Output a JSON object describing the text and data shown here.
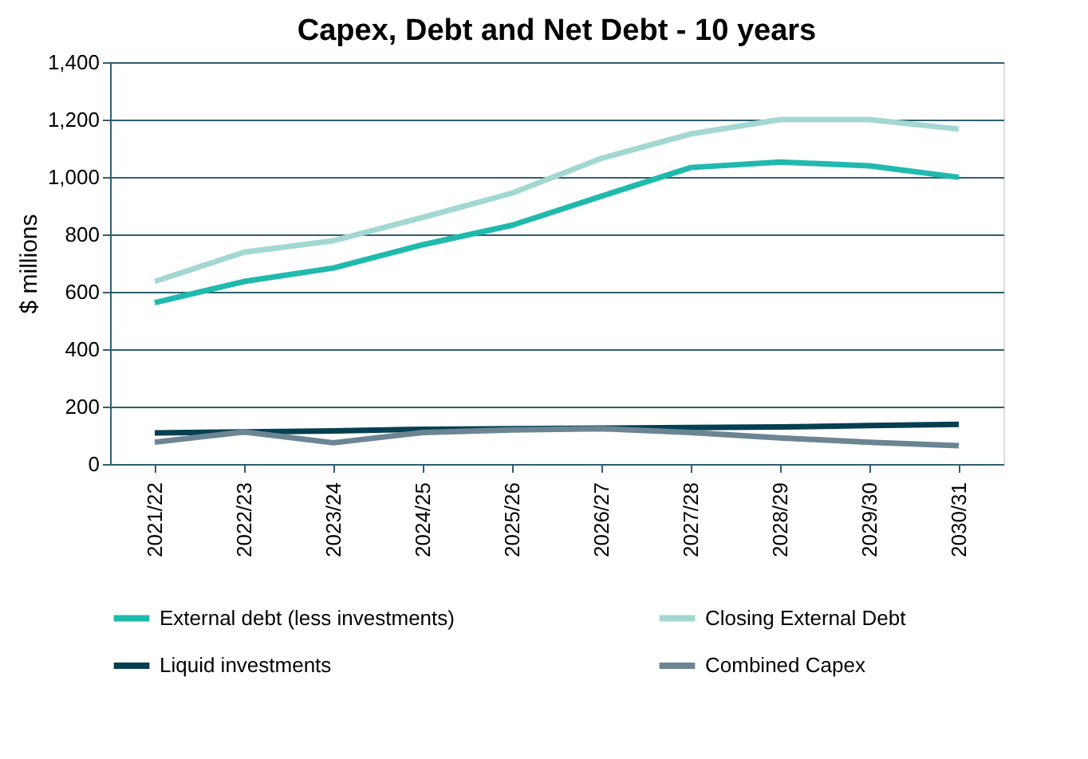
{
  "chart_data": {
    "type": "line",
    "title": "Capex, Debt and Net Debt - 10 years",
    "ylabel": "$ millions",
    "categories": [
      "2021/22",
      "2022/23",
      "2023/24",
      "2024/25",
      "2025/26",
      "2026/27",
      "2027/28",
      "2028/29",
      "2029/30",
      "2030/31"
    ],
    "series": [
      {
        "name": "External debt (less investments)",
        "color": "#20b9ae",
        "values": [
          562,
          636,
          683,
          764,
          832,
          933,
          1033,
          1052,
          1039,
          999
        ]
      },
      {
        "name": "Closing External Debt",
        "color": "#a3d8d2",
        "values": [
          636,
          738,
          778,
          859,
          944,
          1065,
          1150,
          1200,
          1200,
          1167
        ]
      },
      {
        "name": "Liquid investments",
        "color": "#053f52",
        "values": [
          108,
          112,
          115,
          121,
          123,
          125,
          127,
          129,
          134,
          138
        ]
      },
      {
        "name": "Combined Capex",
        "color": "#6b8594",
        "values": [
          76,
          112,
          74,
          110,
          119,
          123,
          110,
          91,
          76,
          64
        ]
      }
    ],
    "ylim": [
      0,
      1400
    ],
    "yticks": [
      {
        "value": 0,
        "label": "0"
      },
      {
        "value": 200,
        "label": "200"
      },
      {
        "value": 400,
        "label": "400"
      },
      {
        "value": 600,
        "label": "600"
      },
      {
        "value": 800,
        "label": "800"
      },
      {
        "value": 1000,
        "label": "1,000"
      },
      {
        "value": 1200,
        "label": "1,200"
      },
      {
        "value": 1400,
        "label": "1,400"
      }
    ],
    "grid": "y",
    "legend": "bottom",
    "marker": "none",
    "line_style": "solid"
  }
}
